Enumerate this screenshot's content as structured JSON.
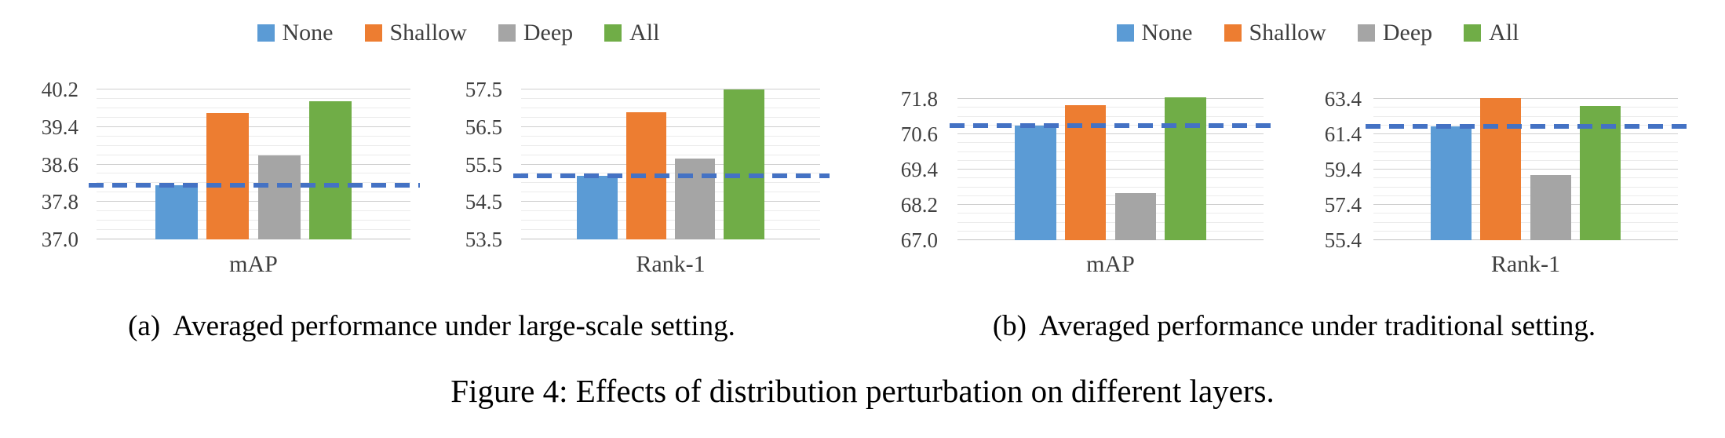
{
  "figure": {
    "caption": "Figure 4: Effects of distribution perturbation on different layers.",
    "subcaptions": {
      "a": {
        "tag": "(a)",
        "text": "Averaged performance under large-scale setting."
      },
      "b": {
        "tag": "(b)",
        "text": "Averaged performance under traditional setting."
      }
    }
  },
  "legend": {
    "position": "top-center",
    "items": [
      {
        "label": "None",
        "color": "#5B9BD5"
      },
      {
        "label": "Shallow",
        "color": "#ED7D31"
      },
      {
        "label": "Deep",
        "color": "#A5A5A5"
      },
      {
        "label": "All",
        "color": "#70AD47"
      }
    ]
  },
  "colors": {
    "baseline_dash": "#4472C4",
    "major_gridline": "#CFCFCF",
    "minor_gridline": "#EBEBEB",
    "tick_text": "#404040"
  },
  "chart_data": [
    {
      "type": "bar",
      "panel": "a",
      "xlabel": "mAP",
      "grid": true,
      "categories": [
        "None",
        "Shallow",
        "Deep",
        "All"
      ],
      "values": [
        38.15,
        39.7,
        38.8,
        39.95
      ],
      "ylim": [
        37.0,
        40.2
      ],
      "major_step": 0.8,
      "minor_step": 0.2,
      "yticks": [
        "40.2",
        "39.4",
        "38.6",
        "37.8",
        "37.0"
      ],
      "baseline": 38.15,
      "baseline_style": "dashed"
    },
    {
      "type": "bar",
      "panel": "a",
      "xlabel": "Rank-1",
      "grid": true,
      "categories": [
        "None",
        "Shallow",
        "Deep",
        "All"
      ],
      "values": [
        55.2,
        56.9,
        55.65,
        57.5
      ],
      "ylim": [
        53.5,
        57.5
      ],
      "major_step": 1.0,
      "minor_step": 0.25,
      "yticks": [
        "57.5",
        "56.5",
        "55.5",
        "54.5",
        "53.5"
      ],
      "baseline": 55.2,
      "baseline_style": "dashed"
    },
    {
      "type": "bar",
      "panel": "b",
      "xlabel": "mAP",
      "grid": true,
      "categories": [
        "None",
        "Shallow",
        "Deep",
        "All"
      ],
      "values": [
        70.9,
        71.6,
        68.6,
        71.85
      ],
      "ylim": [
        67.0,
        71.8
      ],
      "major_step": 1.2,
      "minor_step": 0.3,
      "yticks": [
        "71.8",
        "70.6",
        "69.4",
        "68.2",
        "67.0"
      ],
      "baseline": 70.9,
      "baseline_style": "dashed"
    },
    {
      "type": "bar",
      "panel": "b",
      "xlabel": "Rank-1",
      "grid": true,
      "categories": [
        "None",
        "Shallow",
        "Deep",
        "All"
      ],
      "values": [
        61.85,
        63.45,
        59.1,
        63.0
      ],
      "ylim": [
        55.4,
        63.4
      ],
      "major_step": 2.0,
      "minor_step": 0.5,
      "yticks": [
        "63.4",
        "61.4",
        "59.4",
        "57.4",
        "55.4"
      ],
      "baseline": 61.85,
      "baseline_style": "dashed"
    }
  ]
}
